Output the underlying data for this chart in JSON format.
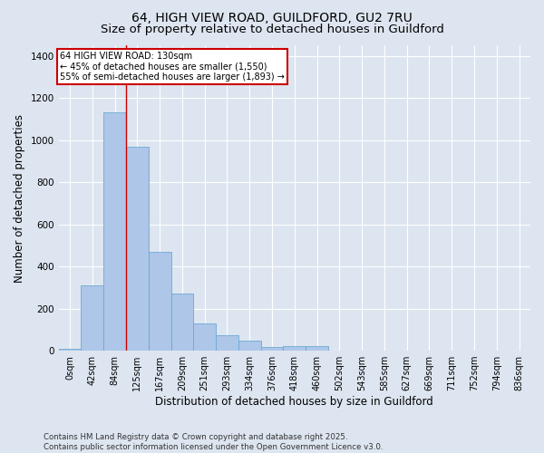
{
  "title_line1": "64, HIGH VIEW ROAD, GUILDFORD, GU2 7RU",
  "title_line2": "Size of property relative to detached houses in Guildford",
  "xlabel": "Distribution of detached houses by size in Guildford",
  "ylabel": "Number of detached properties",
  "footnote": "Contains HM Land Registry data © Crown copyright and database right 2025.\nContains public sector information licensed under the Open Government Licence v3.0.",
  "categories": [
    "0sqm",
    "42sqm",
    "84sqm",
    "125sqm",
    "167sqm",
    "209sqm",
    "251sqm",
    "293sqm",
    "334sqm",
    "376sqm",
    "418sqm",
    "460sqm",
    "502sqm",
    "543sqm",
    "585sqm",
    "627sqm",
    "669sqm",
    "711sqm",
    "752sqm",
    "794sqm",
    "836sqm"
  ],
  "values": [
    8,
    310,
    1130,
    970,
    470,
    270,
    130,
    75,
    47,
    18,
    22,
    20,
    0,
    0,
    0,
    0,
    0,
    0,
    0,
    0,
    0
  ],
  "bar_color": "#aec6e8",
  "bar_edge_color": "#6aaad4",
  "property_line_x": 2.5,
  "annotation_title": "64 HIGH VIEW ROAD: 130sqm",
  "annotation_line2": "← 45% of detached houses are smaller (1,550)",
  "annotation_line3": "55% of semi-detached houses are larger (1,893) →",
  "annotation_box_color": "#ffffff",
  "annotation_box_edge": "#cc0000",
  "ylim": [
    0,
    1450
  ],
  "yticks": [
    0,
    200,
    400,
    600,
    800,
    1000,
    1200,
    1400
  ],
  "bg_color": "#dde5f0",
  "plot_bg_color": "#dde5f0",
  "grid_color": "#ffffff",
  "title_fontsize": 10,
  "subtitle_fontsize": 9.5,
  "axis_label_fontsize": 8.5,
  "tick_fontsize": 7
}
